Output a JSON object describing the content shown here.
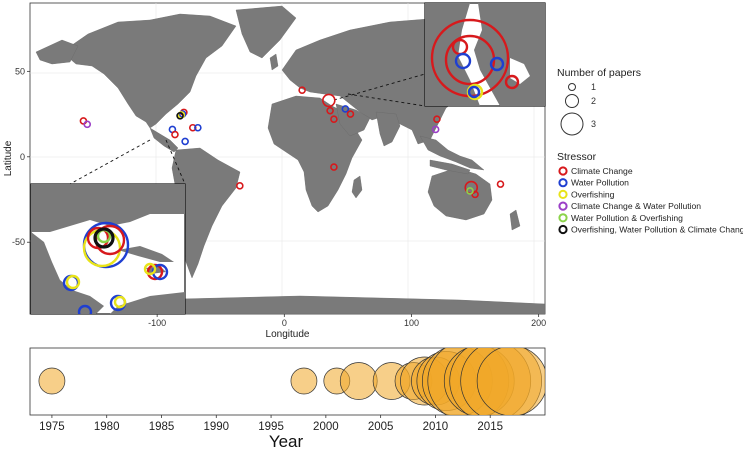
{
  "chart_data": [
    {
      "type": "scatter",
      "subtype": "bubble-map",
      "xlabel": "Longitude",
      "ylabel": "Latitude",
      "xlim": [
        -200,
        205
      ],
      "ylim": [
        -92,
        90
      ],
      "xticks": [
        -100,
        0,
        100,
        200
      ],
      "xtick_labels": [
        "-100",
        "0",
        "100",
        "200"
      ],
      "yticks": [
        50,
        0,
        -50
      ],
      "ytick_labels": [
        "50",
        "0",
        "-50"
      ],
      "size_legend": {
        "title": "Number of papers",
        "entries": [
          {
            "label": "1",
            "value": 1
          },
          {
            "label": "2",
            "value": 2
          },
          {
            "label": "3",
            "value": 3
          }
        ]
      },
      "color_legend": {
        "title": "Stressor",
        "entries": [
          {
            "label": "Climate Change",
            "color": "#d7191c"
          },
          {
            "label": "Water Pollution",
            "color": "#1f3fd1"
          },
          {
            "label": "Overfishing",
            "color": "#e8e31a"
          },
          {
            "label": "Climate Change & Water Pollution",
            "color": "#9b3fc7"
          },
          {
            "label": "Water Pollution & Overfishing",
            "color": "#8bd34a"
          },
          {
            "label": "Overfishing, Water Pollution & Climate Change",
            "color": "#111111"
          }
        ]
      },
      "points": [
        {
          "lon": -79,
          "lat": 26,
          "papers": 1,
          "stressor": "Climate Change"
        },
        {
          "lon": -80,
          "lat": 25,
          "papers": 1,
          "stressor": "Water Pollution"
        },
        {
          "lon": -81,
          "lat": 24.5,
          "papers": 1,
          "stressor": "Overfishing"
        },
        {
          "lon": -82,
          "lat": 24,
          "papers": 1,
          "stressor": "Overfishing, Water Pollution & Climate Change"
        },
        {
          "lon": -88,
          "lat": 16,
          "papers": 1,
          "stressor": "Water Pollution"
        },
        {
          "lon": -86,
          "lat": 13,
          "papers": 1,
          "stressor": "Climate Change"
        },
        {
          "lon": -72,
          "lat": 17,
          "papers": 1,
          "stressor": "Climate Change"
        },
        {
          "lon": -68,
          "lat": 17,
          "papers": 1,
          "stressor": "Water Pollution"
        },
        {
          "lon": -158,
          "lat": 21,
          "papers": 1,
          "stressor": "Climate Change"
        },
        {
          "lon": -155,
          "lat": 19,
          "papers": 1,
          "stressor": "Climate Change & Water Pollution"
        },
        {
          "lon": -78,
          "lat": 9,
          "papers": 1,
          "stressor": "Water Pollution"
        },
        {
          "lon": -35,
          "lat": -17,
          "papers": 1,
          "stressor": "Climate Change"
        },
        {
          "lon": 14,
          "lat": 39,
          "papers": 1,
          "stressor": "Climate Change"
        },
        {
          "lon": 35,
          "lat": 33,
          "papers": 2,
          "stressor": "Climate Change"
        },
        {
          "lon": 36,
          "lat": 27,
          "papers": 1,
          "stressor": "Climate Change"
        },
        {
          "lon": 39,
          "lat": 22,
          "papers": 1,
          "stressor": "Climate Change"
        },
        {
          "lon": 48,
          "lat": 28,
          "papers": 1,
          "stressor": "Water Pollution"
        },
        {
          "lon": 52,
          "lat": 25,
          "papers": 1,
          "stressor": "Climate Change"
        },
        {
          "lon": 39,
          "lat": -6,
          "papers": 1,
          "stressor": "Climate Change"
        },
        {
          "lon": 120,
          "lat": 22,
          "papers": 1,
          "stressor": "Climate Change"
        },
        {
          "lon": 119,
          "lat": 16,
          "papers": 1,
          "stressor": "Climate Change & Water Pollution"
        },
        {
          "lon": 147,
          "lat": -18,
          "papers": 2,
          "stressor": "Climate Change"
        },
        {
          "lon": 150,
          "lat": -22,
          "papers": 1,
          "stressor": "Climate Change"
        },
        {
          "lon": 146,
          "lat": -20,
          "papers": 1,
          "stressor": "Water Pollution & Overfishing"
        },
        {
          "lon": 170,
          "lat": -16,
          "papers": 1,
          "stressor": "Climate Change"
        }
      ]
    },
    {
      "type": "scatter",
      "subtype": "bubble-timeline",
      "xlabel": "Year",
      "xlim": [
        1973,
        2020
      ],
      "xticks": [
        1975,
        1980,
        1985,
        1990,
        1995,
        2000,
        2005,
        2010,
        2015
      ],
      "xtick_labels": [
        "1975",
        "1980",
        "1985",
        "1990",
        "1995",
        "2000",
        "2005",
        "2010",
        "2015"
      ],
      "color": "#f0a828",
      "points": [
        {
          "year": 1975,
          "papers": 1
        },
        {
          "year": 1998,
          "papers": 1
        },
        {
          "year": 2001,
          "papers": 1
        },
        {
          "year": 2003,
          "papers": 2
        },
        {
          "year": 2006,
          "papers": 2
        },
        {
          "year": 2008,
          "papers": 2
        },
        {
          "year": 2009,
          "papers": 3
        },
        {
          "year": 2010,
          "papers": 3
        },
        {
          "year": 2011,
          "papers": 4
        },
        {
          "year": 2012,
          "papers": 5
        },
        {
          "year": 2013,
          "papers": 6
        },
        {
          "year": 2014,
          "papers": 5
        },
        {
          "year": 2015,
          "papers": 6
        },
        {
          "year": 2016,
          "papers": 6
        },
        {
          "year": 2017,
          "papers": 5
        }
      ]
    }
  ]
}
